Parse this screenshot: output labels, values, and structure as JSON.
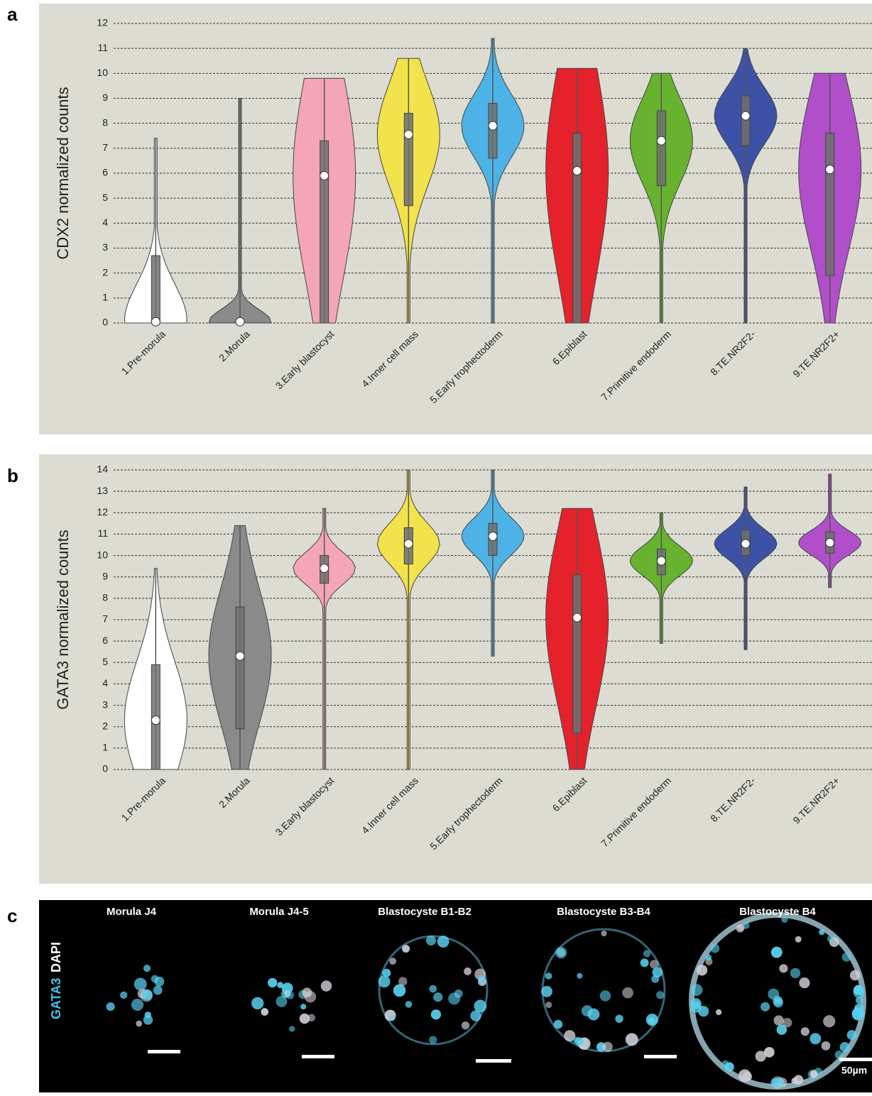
{
  "panel_labels": [
    "a",
    "b",
    "c"
  ],
  "chart_data": [
    {
      "type": "violin",
      "y_label": "CDX2 normalized counts",
      "categories": [
        "1.Pre-morula",
        "2.Morula",
        "3.Early blastocyst",
        "4.Inner cell mass",
        "5.Early trophectoderm",
        "6.Epiblast",
        "7.Primitive endoderm",
        "8.TE.NR2F2-",
        "9.TE.NR2F2+"
      ],
      "colors": [
        "#ffffff",
        "#8a8a8a",
        "#f4a6b8",
        "#f2e34c",
        "#4db3e6",
        "#e5222c",
        "#67b22f",
        "#3d52a6",
        "#b04fc9"
      ],
      "median": [
        0.05,
        0.05,
        5.9,
        7.55,
        7.9,
        6.1,
        7.3,
        8.3,
        6.15
      ],
      "q1": [
        0,
        0,
        0,
        4.7,
        6.6,
        0,
        5.5,
        7.1,
        1.9
      ],
      "q3": [
        2.7,
        0.1,
        7.3,
        8.4,
        8.8,
        7.6,
        8.5,
        9.1,
        7.6
      ],
      "min": [
        0,
        0,
        0,
        0,
        0,
        0,
        0,
        0,
        0
      ],
      "max": [
        7.4,
        9,
        9.8,
        10.6,
        11.4,
        10.2,
        10,
        11,
        10
      ],
      "ylim": [
        0,
        12
      ],
      "yticks": [
        0,
        1,
        2,
        3,
        4,
        5,
        6,
        7,
        8,
        9,
        10,
        11,
        12
      ],
      "grid": true
    },
    {
      "type": "violin",
      "y_label": "GATA3 normalized counts",
      "categories": [
        "1.Pre-morula",
        "2.Morula",
        "3.Early blastocyst",
        "4.Inner cell mass",
        "5.Early trophectoderm",
        "6.Epiblast",
        "7.Primitive endoderm",
        "8.TE.NR2F2-",
        "9.TE.NR2F2+"
      ],
      "colors": [
        "#ffffff",
        "#8a8a8a",
        "#f4a6b8",
        "#f2e34c",
        "#4db3e6",
        "#e5222c",
        "#67b22f",
        "#3d52a6",
        "#b04fc9"
      ],
      "median": [
        2.3,
        5.3,
        9.4,
        10.55,
        10.9,
        7.1,
        9.75,
        10.55,
        10.6
      ],
      "q1": [
        0,
        1.9,
        8.7,
        9.6,
        10,
        1.7,
        9.1,
        10,
        10.1
      ],
      "q3": [
        4.9,
        7.6,
        10,
        11.3,
        11.5,
        9.1,
        10.3,
        11.2,
        11.1
      ],
      "min": [
        0,
        0,
        0,
        0,
        5.3,
        0,
        5.9,
        5.6,
        8.5
      ],
      "max": [
        9.4,
        11.4,
        12.2,
        14,
        14,
        12.2,
        12,
        13.2,
        13.8
      ],
      "ylim": [
        0,
        14
      ],
      "yticks": [
        0,
        1,
        2,
        3,
        4,
        5,
        6,
        7,
        8,
        9,
        10,
        11,
        12,
        13,
        14
      ],
      "grid": true
    }
  ],
  "images": {
    "titles": [
      "Morula J4",
      "Morula J4-5",
      "Blastocyste B1-B2",
      "Blastocyste B3-B4",
      "Blastocyste B4"
    ],
    "channel_labels": [
      "GATA3",
      "DAPI"
    ],
    "scale_bar": "50µm"
  }
}
